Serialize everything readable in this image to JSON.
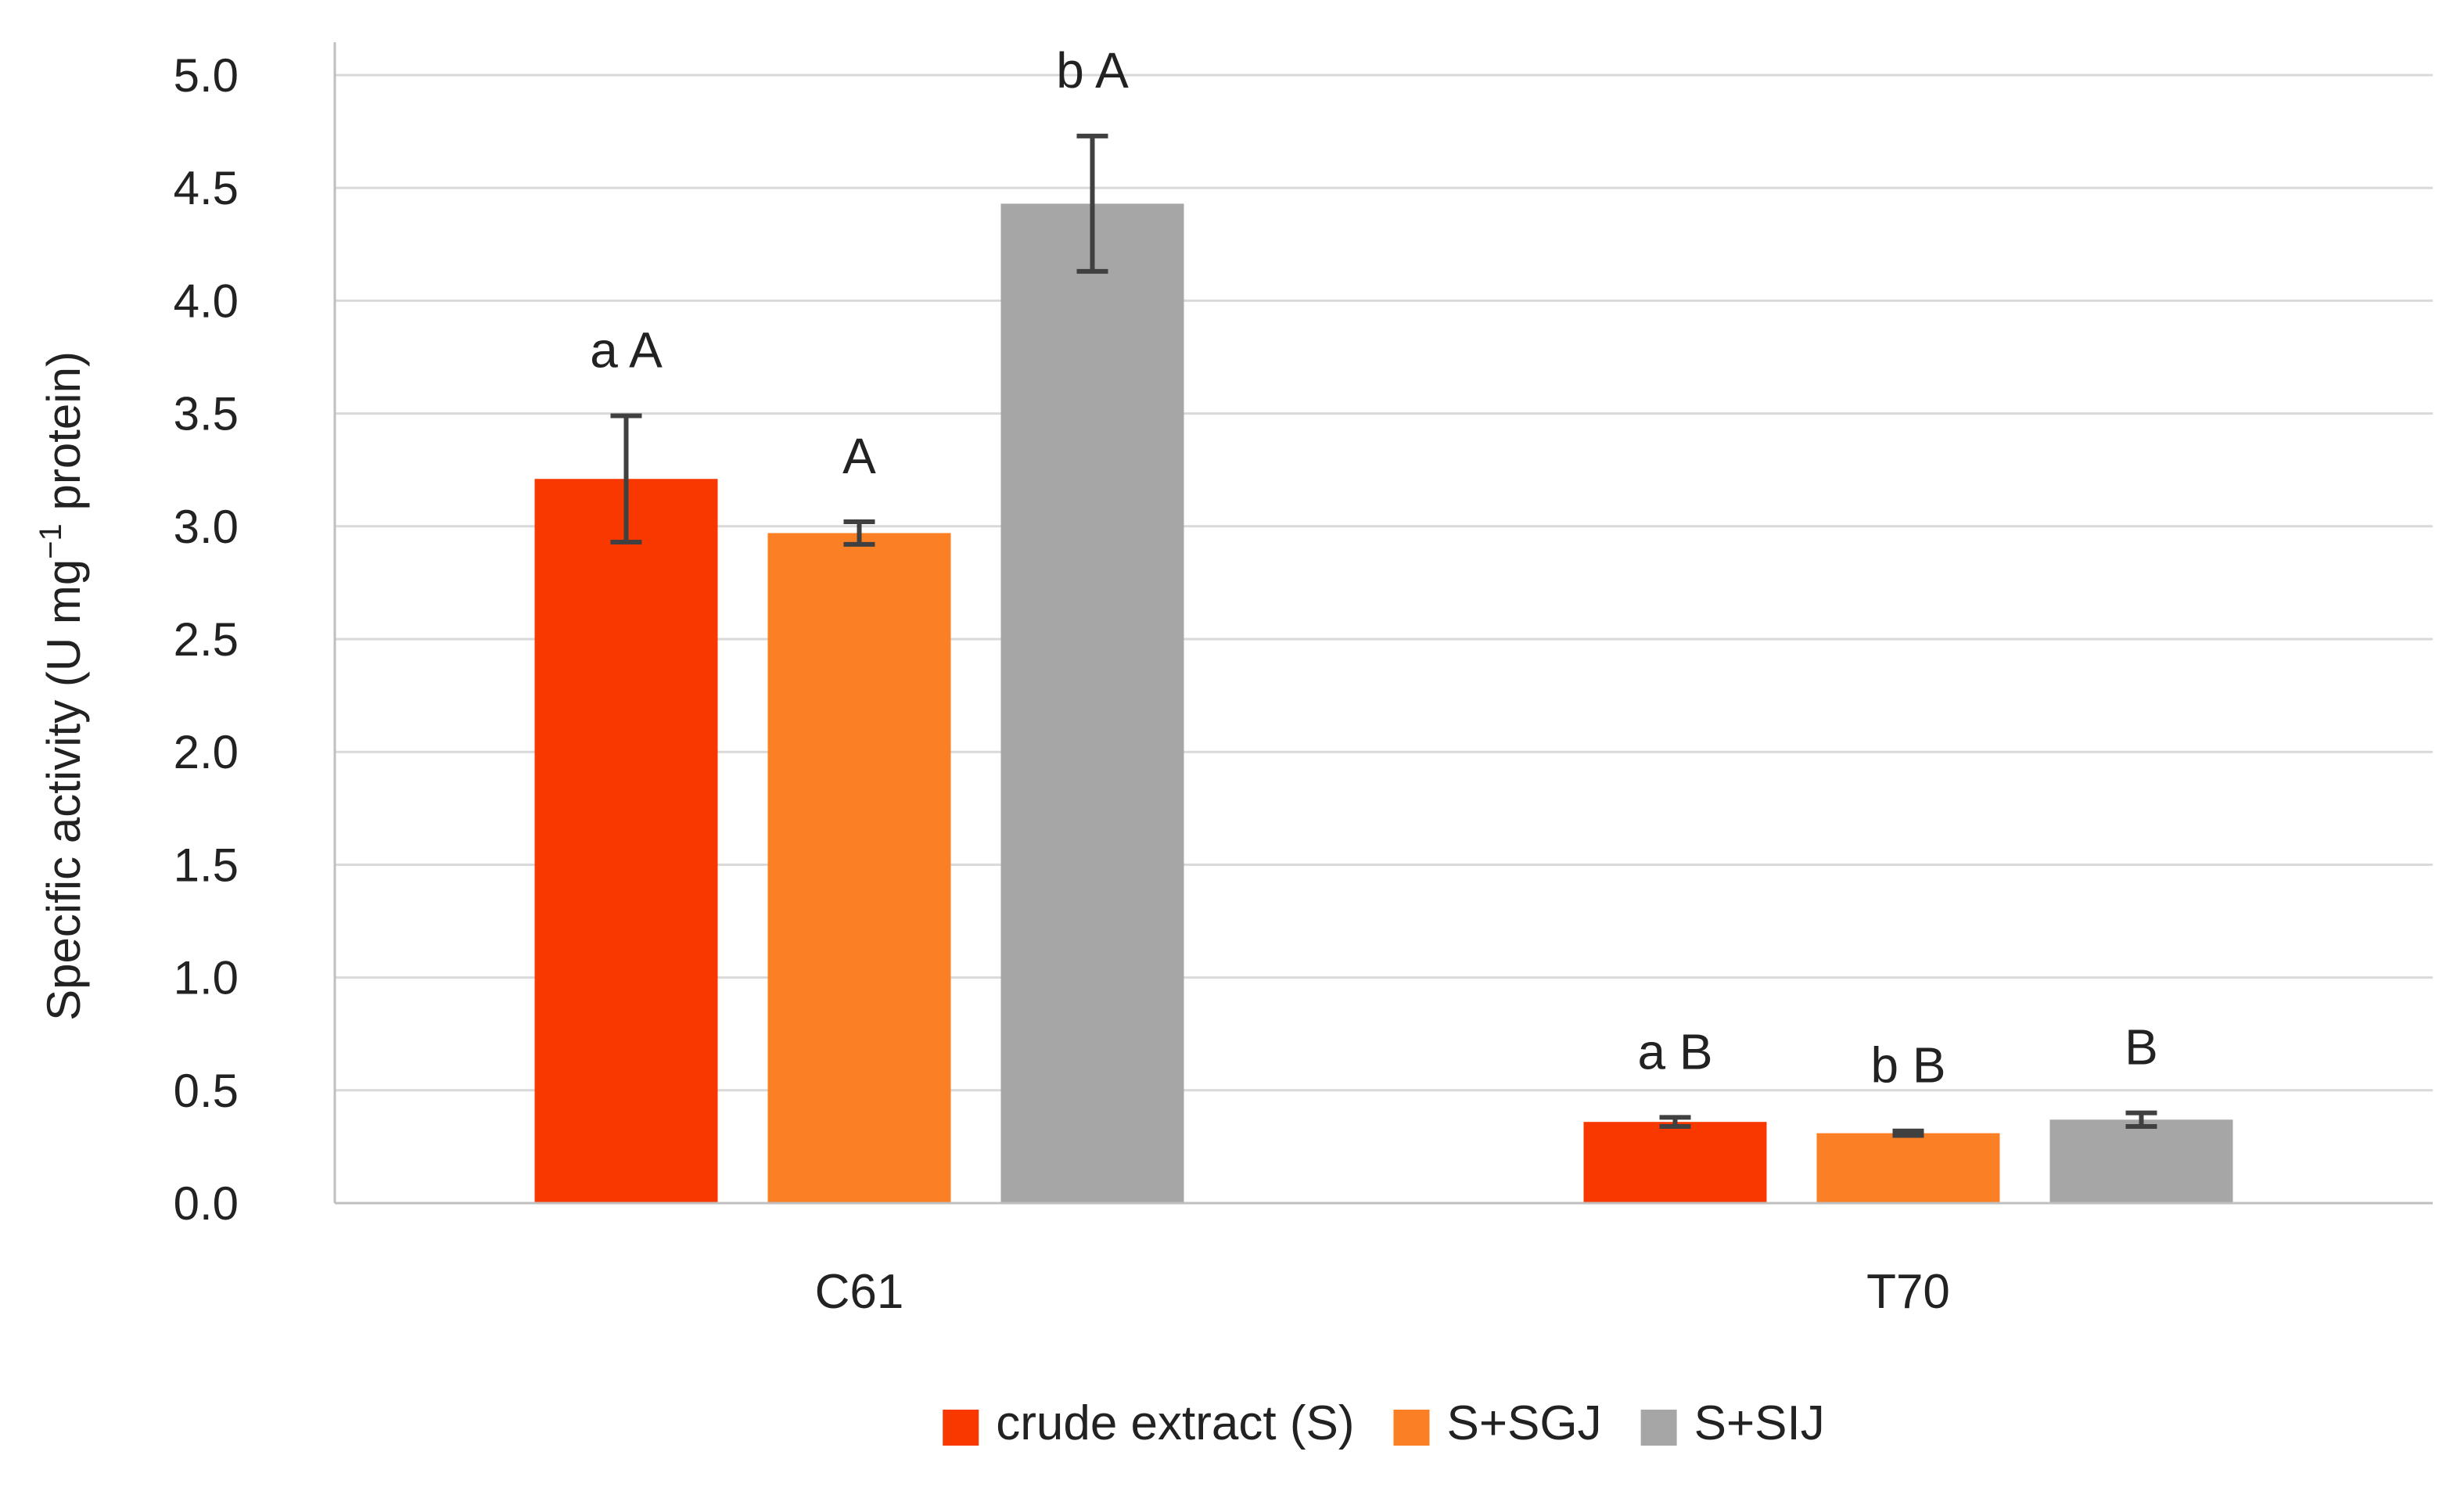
{
  "chart_data": {
    "type": "bar",
    "title": "",
    "xlabel": "",
    "ylabel": {
      "main": "Specific activity (U mg",
      "superscript": "−1",
      "suffix": " protein)"
    },
    "ylim": [
      0,
      5
    ],
    "ytick_step": 0.5,
    "ytick_labels": [
      "0.0",
      "0.5",
      "1.0",
      "1.5",
      "2.0",
      "2.5",
      "3.0",
      "3.5",
      "4.0",
      "4.5",
      "5.0"
    ],
    "grid": true,
    "categories": [
      "C61",
      "T70"
    ],
    "series": [
      {
        "name": "crude extract (S)",
        "color": "#F93800",
        "values": [
          3.21,
          0.36
        ],
        "errors": [
          0.28,
          0.02
        ],
        "labels": [
          "a A",
          "a B"
        ]
      },
      {
        "name": "S+SGJ",
        "color": "#FB7F24",
        "values": [
          2.97,
          0.31
        ],
        "errors": [
          0.05,
          0.01
        ],
        "labels": [
          "A",
          "b B"
        ]
      },
      {
        "name": "S+SIJ",
        "color": "#A6A6A6",
        "values": [
          4.43,
          0.37
        ],
        "errors": [
          0.3,
          0.03
        ],
        "labels": [
          "b A",
          "B"
        ]
      }
    ],
    "legend_position": "bottom-center"
  }
}
